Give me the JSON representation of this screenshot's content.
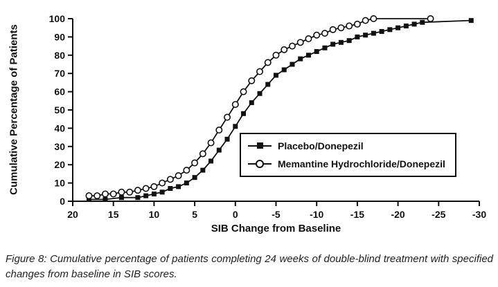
{
  "figure": {
    "caption_label": "Figure 8:",
    "caption_body": "Cumulative percentage of patients completing 24 weeks of double-blind treatment with specified changes from baseline in SIB scores."
  },
  "chart_data": {
    "type": "line",
    "title": "",
    "xlabel": "SIB Change from Baseline",
    "ylabel": "Cumulative Percentage of Patients",
    "xlim": [
      20,
      -30
    ],
    "ylim": [
      0,
      100
    ],
    "x_axis_reversed": true,
    "grid": false,
    "legend_position": "inside-right",
    "x_ticks": [
      20,
      15,
      10,
      5,
      0,
      -5,
      -10,
      -15,
      -20,
      -25,
      -30
    ],
    "y_ticks": [
      0,
      10,
      20,
      30,
      40,
      50,
      60,
      70,
      80,
      90,
      100
    ],
    "line_color": "#111111",
    "series": [
      {
        "name": "Placebo/Donepezil",
        "marker": "filled-square",
        "color": "#111111",
        "points": [
          [
            18,
            1
          ],
          [
            16,
            1
          ],
          [
            14,
            2
          ],
          [
            12,
            2
          ],
          [
            11,
            3
          ],
          [
            10,
            4
          ],
          [
            9,
            5
          ],
          [
            8,
            7
          ],
          [
            7,
            8
          ],
          [
            6,
            10
          ],
          [
            5,
            13
          ],
          [
            4,
            17
          ],
          [
            3,
            22
          ],
          [
            2,
            28
          ],
          [
            1,
            34
          ],
          [
            0,
            41
          ],
          [
            -1,
            48
          ],
          [
            -2,
            54
          ],
          [
            -3,
            59
          ],
          [
            -4,
            64
          ],
          [
            -5,
            69
          ],
          [
            -6,
            72
          ],
          [
            -7,
            75
          ],
          [
            -8,
            78
          ],
          [
            -9,
            80
          ],
          [
            -10,
            82
          ],
          [
            -11,
            84
          ],
          [
            -12,
            86
          ],
          [
            -13,
            87
          ],
          [
            -14,
            88
          ],
          [
            -15,
            90
          ],
          [
            -16,
            91
          ],
          [
            -17,
            92
          ],
          [
            -18,
            93
          ],
          [
            -19,
            94
          ],
          [
            -20,
            95
          ],
          [
            -21,
            96
          ],
          [
            -22,
            97
          ],
          [
            -23,
            98
          ],
          [
            -29,
            99
          ]
        ]
      },
      {
        "name": "Memantine Hydrochloride/Donepezil",
        "marker": "open-circle",
        "color": "#111111",
        "points": [
          [
            18,
            3
          ],
          [
            17,
            3
          ],
          [
            16,
            4
          ],
          [
            15,
            4
          ],
          [
            14,
            5
          ],
          [
            13,
            5
          ],
          [
            12,
            6
          ],
          [
            11,
            7
          ],
          [
            10,
            8
          ],
          [
            9,
            10
          ],
          [
            8,
            12
          ],
          [
            7,
            14
          ],
          [
            6,
            17
          ],
          [
            5,
            21
          ],
          [
            4,
            26
          ],
          [
            3,
            32
          ],
          [
            2,
            39
          ],
          [
            1,
            46
          ],
          [
            0,
            53
          ],
          [
            -1,
            60
          ],
          [
            -2,
            66
          ],
          [
            -3,
            71
          ],
          [
            -4,
            76
          ],
          [
            -5,
            80
          ],
          [
            -6,
            83
          ],
          [
            -7,
            85
          ],
          [
            -8,
            87
          ],
          [
            -9,
            89
          ],
          [
            -10,
            91
          ],
          [
            -11,
            92
          ],
          [
            -12,
            94
          ],
          [
            -13,
            95
          ],
          [
            -14,
            96
          ],
          [
            -15,
            97
          ],
          [
            -16,
            99
          ],
          [
            -17,
            100
          ],
          [
            -24,
            100
          ]
        ]
      }
    ]
  }
}
